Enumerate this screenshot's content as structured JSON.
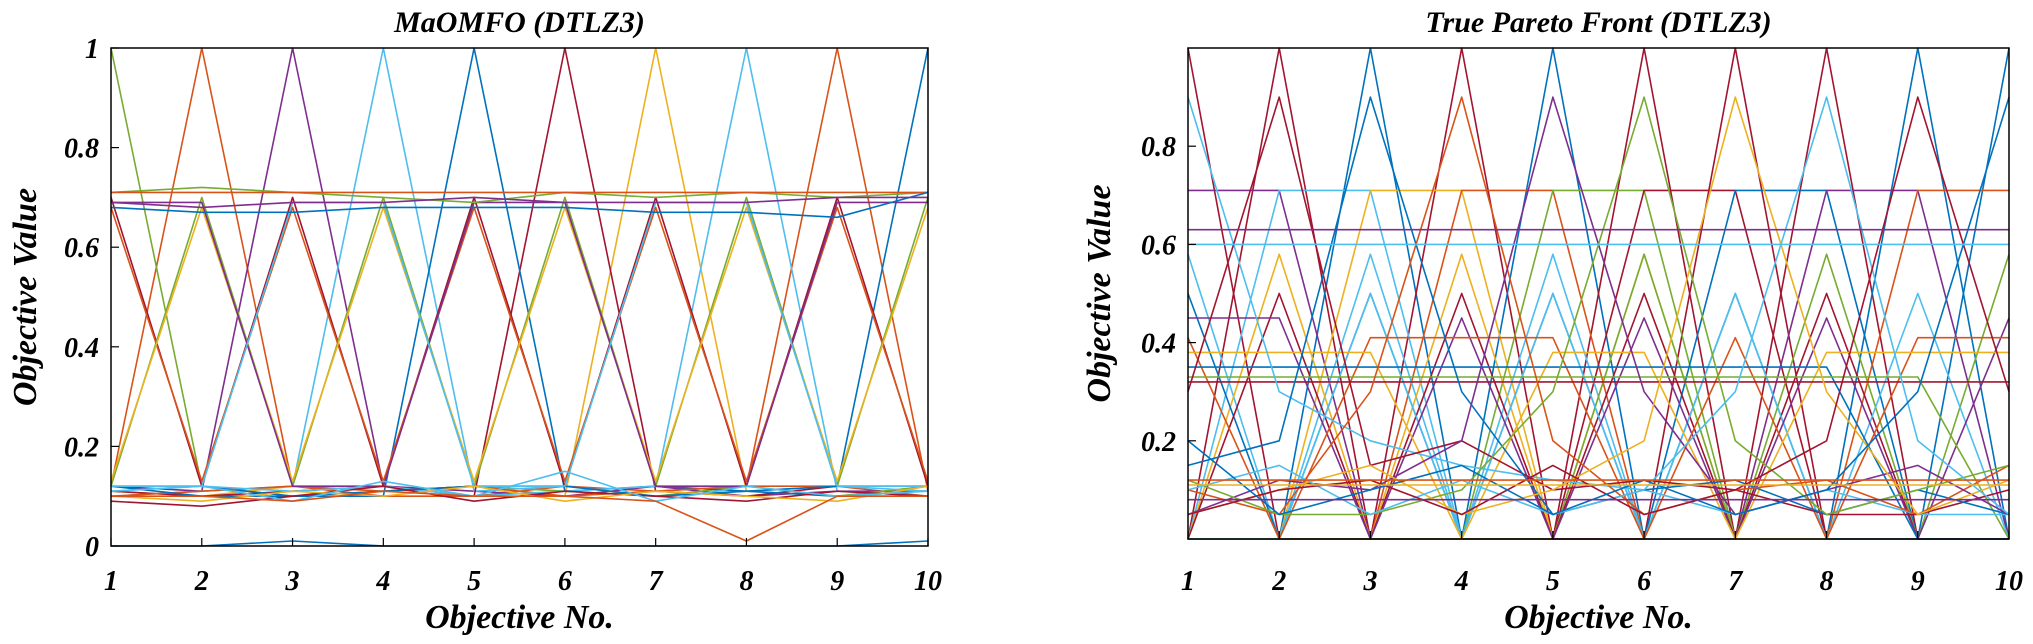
{
  "chart_data": [
    {
      "type": "line",
      "title": "MaOMFO (DTLZ3)",
      "xlabel": "Objective No.",
      "ylabel": "Objective Value",
      "x": [
        1,
        2,
        3,
        4,
        5,
        6,
        7,
        8,
        9,
        10
      ],
      "xticks": [
        "1",
        "2",
        "3",
        "4",
        "5",
        "6",
        "7",
        "8",
        "9",
        "10"
      ],
      "xlim": [
        1,
        10
      ],
      "ylim": [
        0,
        1
      ],
      "yticks": [
        "0",
        "0.2",
        "0.4",
        "0.6",
        "0.8",
        "1"
      ],
      "grid": false,
      "legend": "none",
      "series": [
        {
          "color": "#0072BD",
          "values": [
            0.0,
            0.0,
            0.01,
            0.0,
            0.0,
            0.0,
            0.0,
            0.0,
            0.0,
            0.01
          ]
        },
        {
          "color": "#D95319",
          "values": [
            0.12,
            1.0,
            0.12,
            0.1,
            0.1,
            0.12,
            0.11,
            0.12,
            0.12,
            0.1
          ]
        },
        {
          "color": "#EDB120",
          "values": [
            0.11,
            0.1,
            0.12,
            0.11,
            0.12,
            0.1,
            1.0,
            0.11,
            0.1,
            0.12
          ]
        },
        {
          "color": "#7E2F8E",
          "values": [
            0.12,
            0.11,
            1.0,
            0.12,
            0.11,
            0.1,
            0.12,
            0.1,
            0.11,
            0.11
          ]
        },
        {
          "color": "#77AC30",
          "values": [
            1.0,
            0.12,
            0.1,
            0.11,
            0.12,
            0.11,
            0.1,
            0.12,
            0.1,
            0.12
          ]
        },
        {
          "color": "#4DBEEE",
          "values": [
            0.1,
            0.11,
            0.12,
            1.0,
            0.11,
            0.12,
            0.1,
            0.11,
            0.12,
            0.11
          ]
        },
        {
          "color": "#A2142F",
          "values": [
            0.11,
            0.1,
            0.11,
            0.12,
            0.1,
            1.0,
            0.11,
            0.1,
            0.12,
            0.12
          ]
        },
        {
          "color": "#0072BD",
          "values": [
            0.12,
            0.12,
            0.1,
            0.1,
            1.0,
            0.11,
            0.12,
            0.11,
            0.1,
            0.1
          ]
        },
        {
          "color": "#D95319",
          "values": [
            0.1,
            0.11,
            0.12,
            0.11,
            0.12,
            0.1,
            0.11,
            0.12,
            1.0,
            0.11
          ]
        },
        {
          "color": "#4DBEEE",
          "values": [
            0.11,
            0.12,
            0.11,
            0.12,
            0.1,
            0.11,
            0.12,
            1.0,
            0.11,
            0.1
          ]
        },
        {
          "color": "#0072BD",
          "values": [
            0.12,
            0.1,
            0.1,
            0.11,
            0.12,
            0.12,
            0.1,
            0.11,
            0.12,
            1.0
          ]
        },
        {
          "color": "#A2142F",
          "values": [
            0.7,
            0.12,
            0.7,
            0.12,
            0.7,
            0.12,
            0.7,
            0.12,
            0.7,
            0.12
          ]
        },
        {
          "color": "#77AC30",
          "values": [
            0.12,
            0.7,
            0.12,
            0.7,
            0.12,
            0.7,
            0.12,
            0.7,
            0.12,
            0.7
          ]
        },
        {
          "color": "#D95319",
          "values": [
            0.68,
            0.13,
            0.68,
            0.13,
            0.68,
            0.13,
            0.68,
            0.13,
            0.68,
            0.13
          ]
        },
        {
          "color": "#EDB120",
          "values": [
            0.13,
            0.68,
            0.13,
            0.68,
            0.13,
            0.68,
            0.13,
            0.68,
            0.13,
            0.68
          ]
        },
        {
          "color": "#7E2F8E",
          "values": [
            0.69,
            0.69,
            0.12,
            0.12,
            0.69,
            0.69,
            0.12,
            0.12,
            0.69,
            0.69
          ]
        },
        {
          "color": "#4DBEEE",
          "values": [
            0.12,
            0.12,
            0.69,
            0.69,
            0.12,
            0.12,
            0.69,
            0.69,
            0.12,
            0.12
          ]
        },
        {
          "color": "#77AC30",
          "values": [
            0.71,
            0.72,
            0.71,
            0.7,
            0.69,
            0.71,
            0.7,
            0.71,
            0.7,
            0.71
          ]
        },
        {
          "color": "#D95319",
          "values": [
            0.71,
            0.71,
            0.71,
            0.71,
            0.71,
            0.71,
            0.71,
            0.71,
            0.71,
            0.71
          ]
        },
        {
          "color": "#0072BD",
          "values": [
            0.68,
            0.67,
            0.67,
            0.68,
            0.68,
            0.68,
            0.67,
            0.67,
            0.66,
            0.71
          ]
        },
        {
          "color": "#7E2F8E",
          "values": [
            0.69,
            0.68,
            0.69,
            0.69,
            0.7,
            0.69,
            0.69,
            0.69,
            0.7,
            0.7
          ]
        },
        {
          "color": "#A2142F",
          "values": [
            0.09,
            0.08,
            0.1,
            0.12,
            0.09,
            0.11,
            0.1,
            0.09,
            0.11,
            0.1
          ]
        },
        {
          "color": "#EDB120",
          "values": [
            0.1,
            0.09,
            0.11,
            0.1,
            0.12,
            0.09,
            0.11,
            0.1,
            0.09,
            0.12
          ]
        },
        {
          "color": "#4DBEEE",
          "values": [
            0.11,
            0.12,
            0.09,
            0.13,
            0.1,
            0.15,
            0.09,
            0.12,
            0.1,
            0.11
          ]
        },
        {
          "color": "#D95319",
          "values": [
            0.1,
            0.1,
            0.09,
            0.11,
            0.1,
            0.1,
            0.09,
            0.01,
            0.1,
            0.1
          ]
        }
      ]
    },
    {
      "type": "line",
      "title": "True Pareto Front (DTLZ3)",
      "xlabel": "Objective No.",
      "ylabel": "Objective Value",
      "x": [
        1,
        2,
        3,
        4,
        5,
        6,
        7,
        8,
        9,
        10
      ],
      "xticks": [
        "1",
        "2",
        "3",
        "4",
        "5",
        "6",
        "7",
        "8",
        "9",
        "10"
      ],
      "xlim": [
        1,
        10
      ],
      "ylim": [
        0,
        1
      ],
      "yticks": [
        "0.2",
        "0.4",
        "0.6",
        "0.8"
      ],
      "grid": false,
      "legend": "none",
      "series": [
        {
          "color": "#A2142F",
          "values": [
            1.0,
            0.0,
            0.0,
            0.0,
            0.0,
            0.0,
            0.0,
            0.0,
            0.0,
            0.0
          ]
        },
        {
          "color": "#A2142F",
          "values": [
            0.0,
            1.0,
            0.0,
            0.0,
            0.0,
            0.0,
            0.0,
            0.0,
            0.0,
            0.0
          ]
        },
        {
          "color": "#0072BD",
          "values": [
            0.0,
            0.0,
            1.0,
            0.0,
            0.0,
            0.0,
            0.0,
            0.0,
            0.0,
            0.0
          ]
        },
        {
          "color": "#A2142F",
          "values": [
            0.0,
            0.0,
            0.0,
            1.0,
            0.0,
            0.0,
            0.0,
            0.0,
            0.0,
            0.0
          ]
        },
        {
          "color": "#0072BD",
          "values": [
            0.0,
            0.0,
            0.0,
            0.0,
            1.0,
            0.0,
            0.0,
            0.0,
            0.0,
            0.0
          ]
        },
        {
          "color": "#A2142F",
          "values": [
            0.0,
            0.0,
            0.0,
            0.0,
            0.0,
            1.0,
            0.0,
            0.0,
            0.0,
            0.0
          ]
        },
        {
          "color": "#A2142F",
          "values": [
            0.0,
            0.0,
            0.0,
            0.0,
            0.0,
            0.0,
            1.0,
            0.0,
            0.0,
            0.0
          ]
        },
        {
          "color": "#A2142F",
          "values": [
            0.0,
            0.0,
            0.0,
            0.0,
            0.0,
            0.0,
            0.0,
            1.0,
            0.0,
            0.0
          ]
        },
        {
          "color": "#0072BD",
          "values": [
            0.0,
            0.0,
            0.0,
            0.0,
            0.0,
            0.0,
            0.0,
            0.0,
            1.0,
            0.0
          ]
        },
        {
          "color": "#0072BD",
          "values": [
            0.0,
            0.0,
            0.0,
            0.0,
            0.0,
            0.0,
            0.0,
            0.0,
            0.0,
            1.0
          ]
        },
        {
          "color": "#7E2F8E",
          "values": [
            0.71,
            0.71,
            0.0,
            0.0,
            0.0,
            0.0,
            0.0,
            0.0,
            0.0,
            0.0
          ]
        },
        {
          "color": "#4DBEEE",
          "values": [
            0.0,
            0.71,
            0.71,
            0.0,
            0.0,
            0.0,
            0.0,
            0.0,
            0.0,
            0.0
          ]
        },
        {
          "color": "#EDB120",
          "values": [
            0.0,
            0.0,
            0.71,
            0.71,
            0.0,
            0.0,
            0.0,
            0.0,
            0.0,
            0.0
          ]
        },
        {
          "color": "#D95319",
          "values": [
            0.0,
            0.0,
            0.0,
            0.71,
            0.71,
            0.0,
            0.0,
            0.0,
            0.0,
            0.0
          ]
        },
        {
          "color": "#77AC30",
          "values": [
            0.0,
            0.0,
            0.0,
            0.0,
            0.71,
            0.71,
            0.0,
            0.0,
            0.0,
            0.0
          ]
        },
        {
          "color": "#A2142F",
          "values": [
            0.0,
            0.0,
            0.0,
            0.0,
            0.0,
            0.71,
            0.71,
            0.0,
            0.0,
            0.0
          ]
        },
        {
          "color": "#0072BD",
          "values": [
            0.0,
            0.0,
            0.0,
            0.0,
            0.0,
            0.0,
            0.71,
            0.71,
            0.0,
            0.0
          ]
        },
        {
          "color": "#7E2F8E",
          "values": [
            0.0,
            0.0,
            0.0,
            0.0,
            0.0,
            0.0,
            0.0,
            0.71,
            0.71,
            0.0
          ]
        },
        {
          "color": "#D95319",
          "values": [
            0.0,
            0.0,
            0.0,
            0.0,
            0.0,
            0.0,
            0.0,
            0.0,
            0.71,
            0.71
          ]
        },
        {
          "color": "#4DBEEE",
          "values": [
            0.58,
            0.0,
            0.58,
            0.0,
            0.58,
            0.0,
            0.0,
            0.0,
            0.0,
            0.0
          ]
        },
        {
          "color": "#EDB120",
          "values": [
            0.0,
            0.58,
            0.0,
            0.58,
            0.0,
            0.58,
            0.0,
            0.0,
            0.0,
            0.0
          ]
        },
        {
          "color": "#77AC30",
          "values": [
            0.0,
            0.0,
            0.0,
            0.0,
            0.0,
            0.58,
            0.0,
            0.58,
            0.0,
            0.58
          ]
        },
        {
          "color": "#0072BD",
          "values": [
            0.5,
            0.0,
            0.5,
            0.0,
            0.5,
            0.0,
            0.5,
            0.0,
            0.0,
            0.0
          ]
        },
        {
          "color": "#A2142F",
          "values": [
            0.0,
            0.5,
            0.0,
            0.5,
            0.0,
            0.5,
            0.0,
            0.5,
            0.0,
            0.0
          ]
        },
        {
          "color": "#4DBEEE",
          "values": [
            0.0,
            0.0,
            0.5,
            0.0,
            0.5,
            0.0,
            0.5,
            0.0,
            0.5,
            0.0
          ]
        },
        {
          "color": "#7E2F8E",
          "values": [
            0.45,
            0.45,
            0.0,
            0.45,
            0.0,
            0.45,
            0.0,
            0.45,
            0.0,
            0.45
          ]
        },
        {
          "color": "#D95319",
          "values": [
            0.41,
            0.0,
            0.41,
            0.41,
            0.41,
            0.0,
            0.41,
            0.0,
            0.41,
            0.41
          ]
        },
        {
          "color": "#EDB120",
          "values": [
            0.38,
            0.38,
            0.38,
            0.0,
            0.38,
            0.38,
            0.0,
            0.38,
            0.38,
            0.38
          ]
        },
        {
          "color": "#0072BD",
          "values": [
            0.35,
            0.35,
            0.35,
            0.35,
            0.35,
            0.35,
            0.35,
            0.35,
            0.0,
            0.0
          ]
        },
        {
          "color": "#77AC30",
          "values": [
            0.33,
            0.33,
            0.33,
            0.33,
            0.33,
            0.33,
            0.33,
            0.33,
            0.33,
            0.0
          ]
        },
        {
          "color": "#A2142F",
          "values": [
            0.32,
            0.32,
            0.32,
            0.32,
            0.32,
            0.32,
            0.32,
            0.32,
            0.32,
            0.32
          ]
        },
        {
          "color": "#4DBEEE",
          "values": [
            0.9,
            0.3,
            0.2,
            0.15,
            0.12,
            0.1,
            0.05,
            0.1,
            0.05,
            0.05
          ]
        },
        {
          "color": "#A2142F",
          "values": [
            0.3,
            0.9,
            0.15,
            0.2,
            0.1,
            0.12,
            0.1,
            0.05,
            0.05,
            0.1
          ]
        },
        {
          "color": "#0072BD",
          "values": [
            0.15,
            0.2,
            0.9,
            0.3,
            0.05,
            0.1,
            0.12,
            0.05,
            0.1,
            0.05
          ]
        },
        {
          "color": "#D95319",
          "values": [
            0.1,
            0.05,
            0.3,
            0.9,
            0.2,
            0.05,
            0.1,
            0.12,
            0.05,
            0.15
          ]
        },
        {
          "color": "#7E2F8E",
          "values": [
            0.05,
            0.12,
            0.1,
            0.2,
            0.9,
            0.3,
            0.05,
            0.1,
            0.15,
            0.05
          ]
        },
        {
          "color": "#77AC30",
          "values": [
            0.12,
            0.05,
            0.05,
            0.1,
            0.3,
            0.9,
            0.2,
            0.05,
            0.1,
            0.15
          ]
        },
        {
          "color": "#EDB120",
          "values": [
            0.05,
            0.1,
            0.15,
            0.05,
            0.1,
            0.2,
            0.9,
            0.3,
            0.05,
            0.12
          ]
        },
        {
          "color": "#4DBEEE",
          "values": [
            0.1,
            0.15,
            0.05,
            0.12,
            0.05,
            0.1,
            0.3,
            0.9,
            0.2,
            0.05
          ]
        },
        {
          "color": "#A2142F",
          "values": [
            0.05,
            0.1,
            0.12,
            0.05,
            0.15,
            0.05,
            0.1,
            0.2,
            0.9,
            0.3
          ]
        },
        {
          "color": "#0072BD",
          "values": [
            0.2,
            0.05,
            0.1,
            0.15,
            0.05,
            0.12,
            0.05,
            0.1,
            0.3,
            0.9
          ]
        },
        {
          "color": "#7E2F8E",
          "values": [
            0.08,
            0.08,
            0.08,
            0.08,
            0.08,
            0.08,
            0.08,
            0.08,
            0.08,
            0.08
          ]
        },
        {
          "color": "#EDB120",
          "values": [
            0.11,
            0.11,
            0.11,
            0.11,
            0.11,
            0.11,
            0.11,
            0.11,
            0.11,
            0.11
          ]
        },
        {
          "color": "#D95319",
          "values": [
            0.12,
            0.12,
            0.12,
            0.12,
            0.12,
            0.12,
            0.12,
            0.12,
            0.12,
            0.12
          ]
        },
        {
          "color": "#4DBEEE",
          "values": [
            0.6,
            0.6,
            0.6,
            0.6,
            0.6,
            0.6,
            0.6,
            0.6,
            0.6,
            0.6
          ]
        },
        {
          "color": "#7E2F8E",
          "values": [
            0.63,
            0.63,
            0.63,
            0.63,
            0.63,
            0.63,
            0.63,
            0.63,
            0.63,
            0.63
          ]
        }
      ]
    }
  ]
}
